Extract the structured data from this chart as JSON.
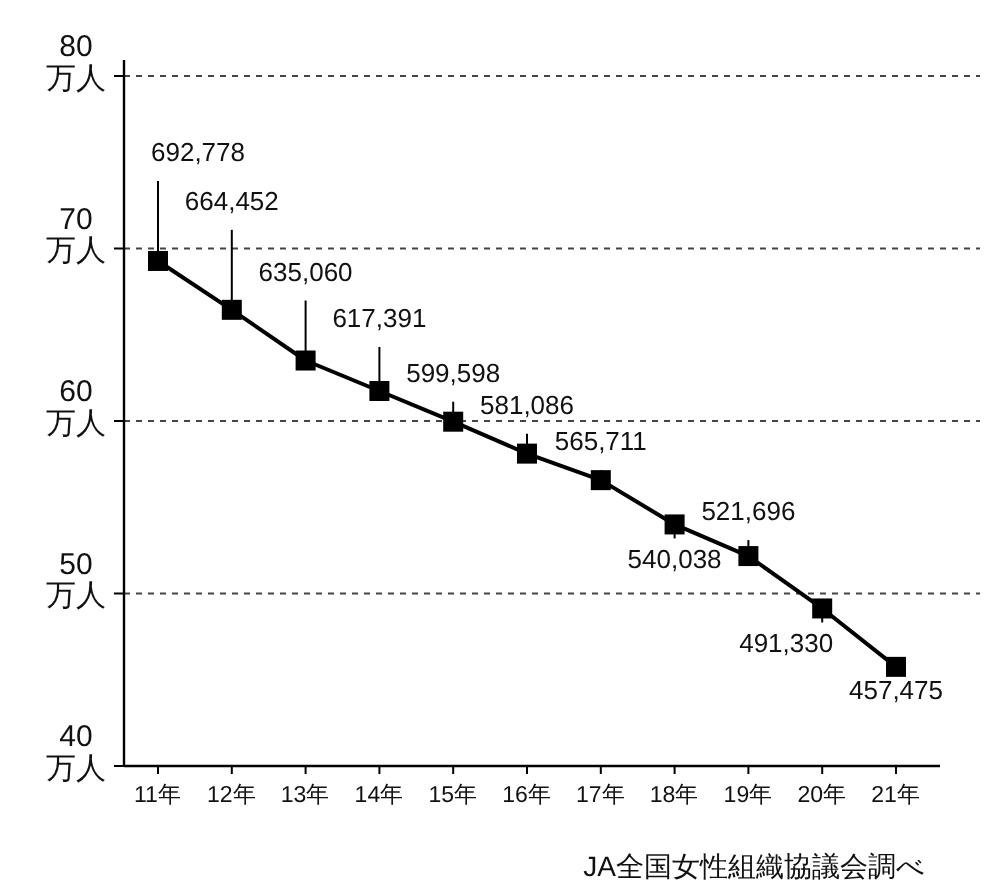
{
  "chart_data": {
    "type": "line",
    "categories": [
      "11年",
      "12年",
      "13年",
      "14年",
      "15年",
      "16年",
      "17年",
      "18年",
      "19年",
      "20年",
      "21年"
    ],
    "series": [
      {
        "color": "#000000",
        "values": [
          69.2778,
          66.4452,
          63.506,
          61.7391,
          59.9598,
          58.1086,
          56.5711,
          54.0038,
          52.1696,
          49.133,
          45.7475
        ]
      }
    ],
    "ylim": [
      40,
      80
    ],
    "yticks": [
      {
        "value": 40,
        "label": "40\n万人"
      },
      {
        "value": 50,
        "label": "50\n万人"
      },
      {
        "value": 60,
        "label": "60\n万人"
      },
      {
        "value": 70,
        "label": "70\n万人"
      },
      {
        "value": 80,
        "label": "80\n万人"
      }
    ],
    "grid": "y",
    "marker": "square",
    "line_style": "solid",
    "annotations": [
      {
        "text": "692,778",
        "x": "11年",
        "y": 69.2778
      },
      {
        "text": "664,452",
        "x": "12年",
        "y": 66.4452
      },
      {
        "text": "635,060",
        "x": "13年",
        "y": 63.506
      },
      {
        "text": "617,391",
        "x": "14年",
        "y": 61.7391
      },
      {
        "text": "599,598",
        "x": "15年",
        "y": 59.9598
      },
      {
        "text": "581,086",
        "x": "16年",
        "y": 58.1086
      },
      {
        "text": "565,711",
        "x": "17年",
        "y": 56.5711
      },
      {
        "text": "540,038",
        "x": "18年",
        "y": 54.0038
      },
      {
        "text": "521,696",
        "x": "19年",
        "y": 52.1696
      },
      {
        "text": "491,330",
        "x": "20年",
        "y": 49.133
      },
      {
        "text": "457,475",
        "x": "21年",
        "y": 45.7475
      },
      "JA全国女性組織協議会調べ"
    ]
  }
}
